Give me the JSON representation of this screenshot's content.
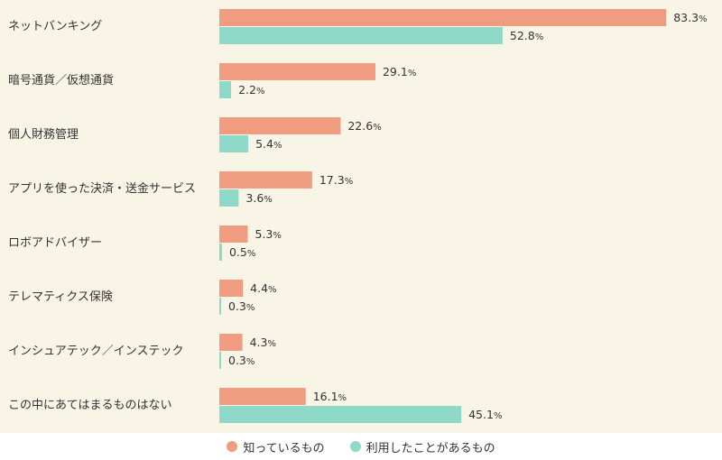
{
  "chart_data": {
    "type": "bar",
    "orientation": "horizontal",
    "categories": [
      "ネットバンキング",
      "暗号通貨／仮想通貨",
      "個人財務管理",
      "アプリを使った決済・送金サービス",
      "ロボアドバイザー",
      "テレマティクス保険",
      "インシュアテック／インステック",
      "この中にあてはまるものはない"
    ],
    "series": [
      {
        "name": "知っているもの",
        "color": "#ef9c80",
        "values": [
          83.3,
          29.1,
          22.6,
          17.3,
          5.3,
          4.4,
          4.3,
          16.1
        ]
      },
      {
        "name": "利用したことがあるもの",
        "color": "#8fd9c8",
        "values": [
          52.8,
          2.2,
          5.4,
          3.6,
          0.5,
          0.3,
          0.3,
          45.1
        ]
      }
    ],
    "value_suffix": "%",
    "xlim": [
      0,
      100
    ],
    "grid": false,
    "legend_position": "bottom-center",
    "title": "",
    "xlabel": "",
    "ylabel": ""
  }
}
